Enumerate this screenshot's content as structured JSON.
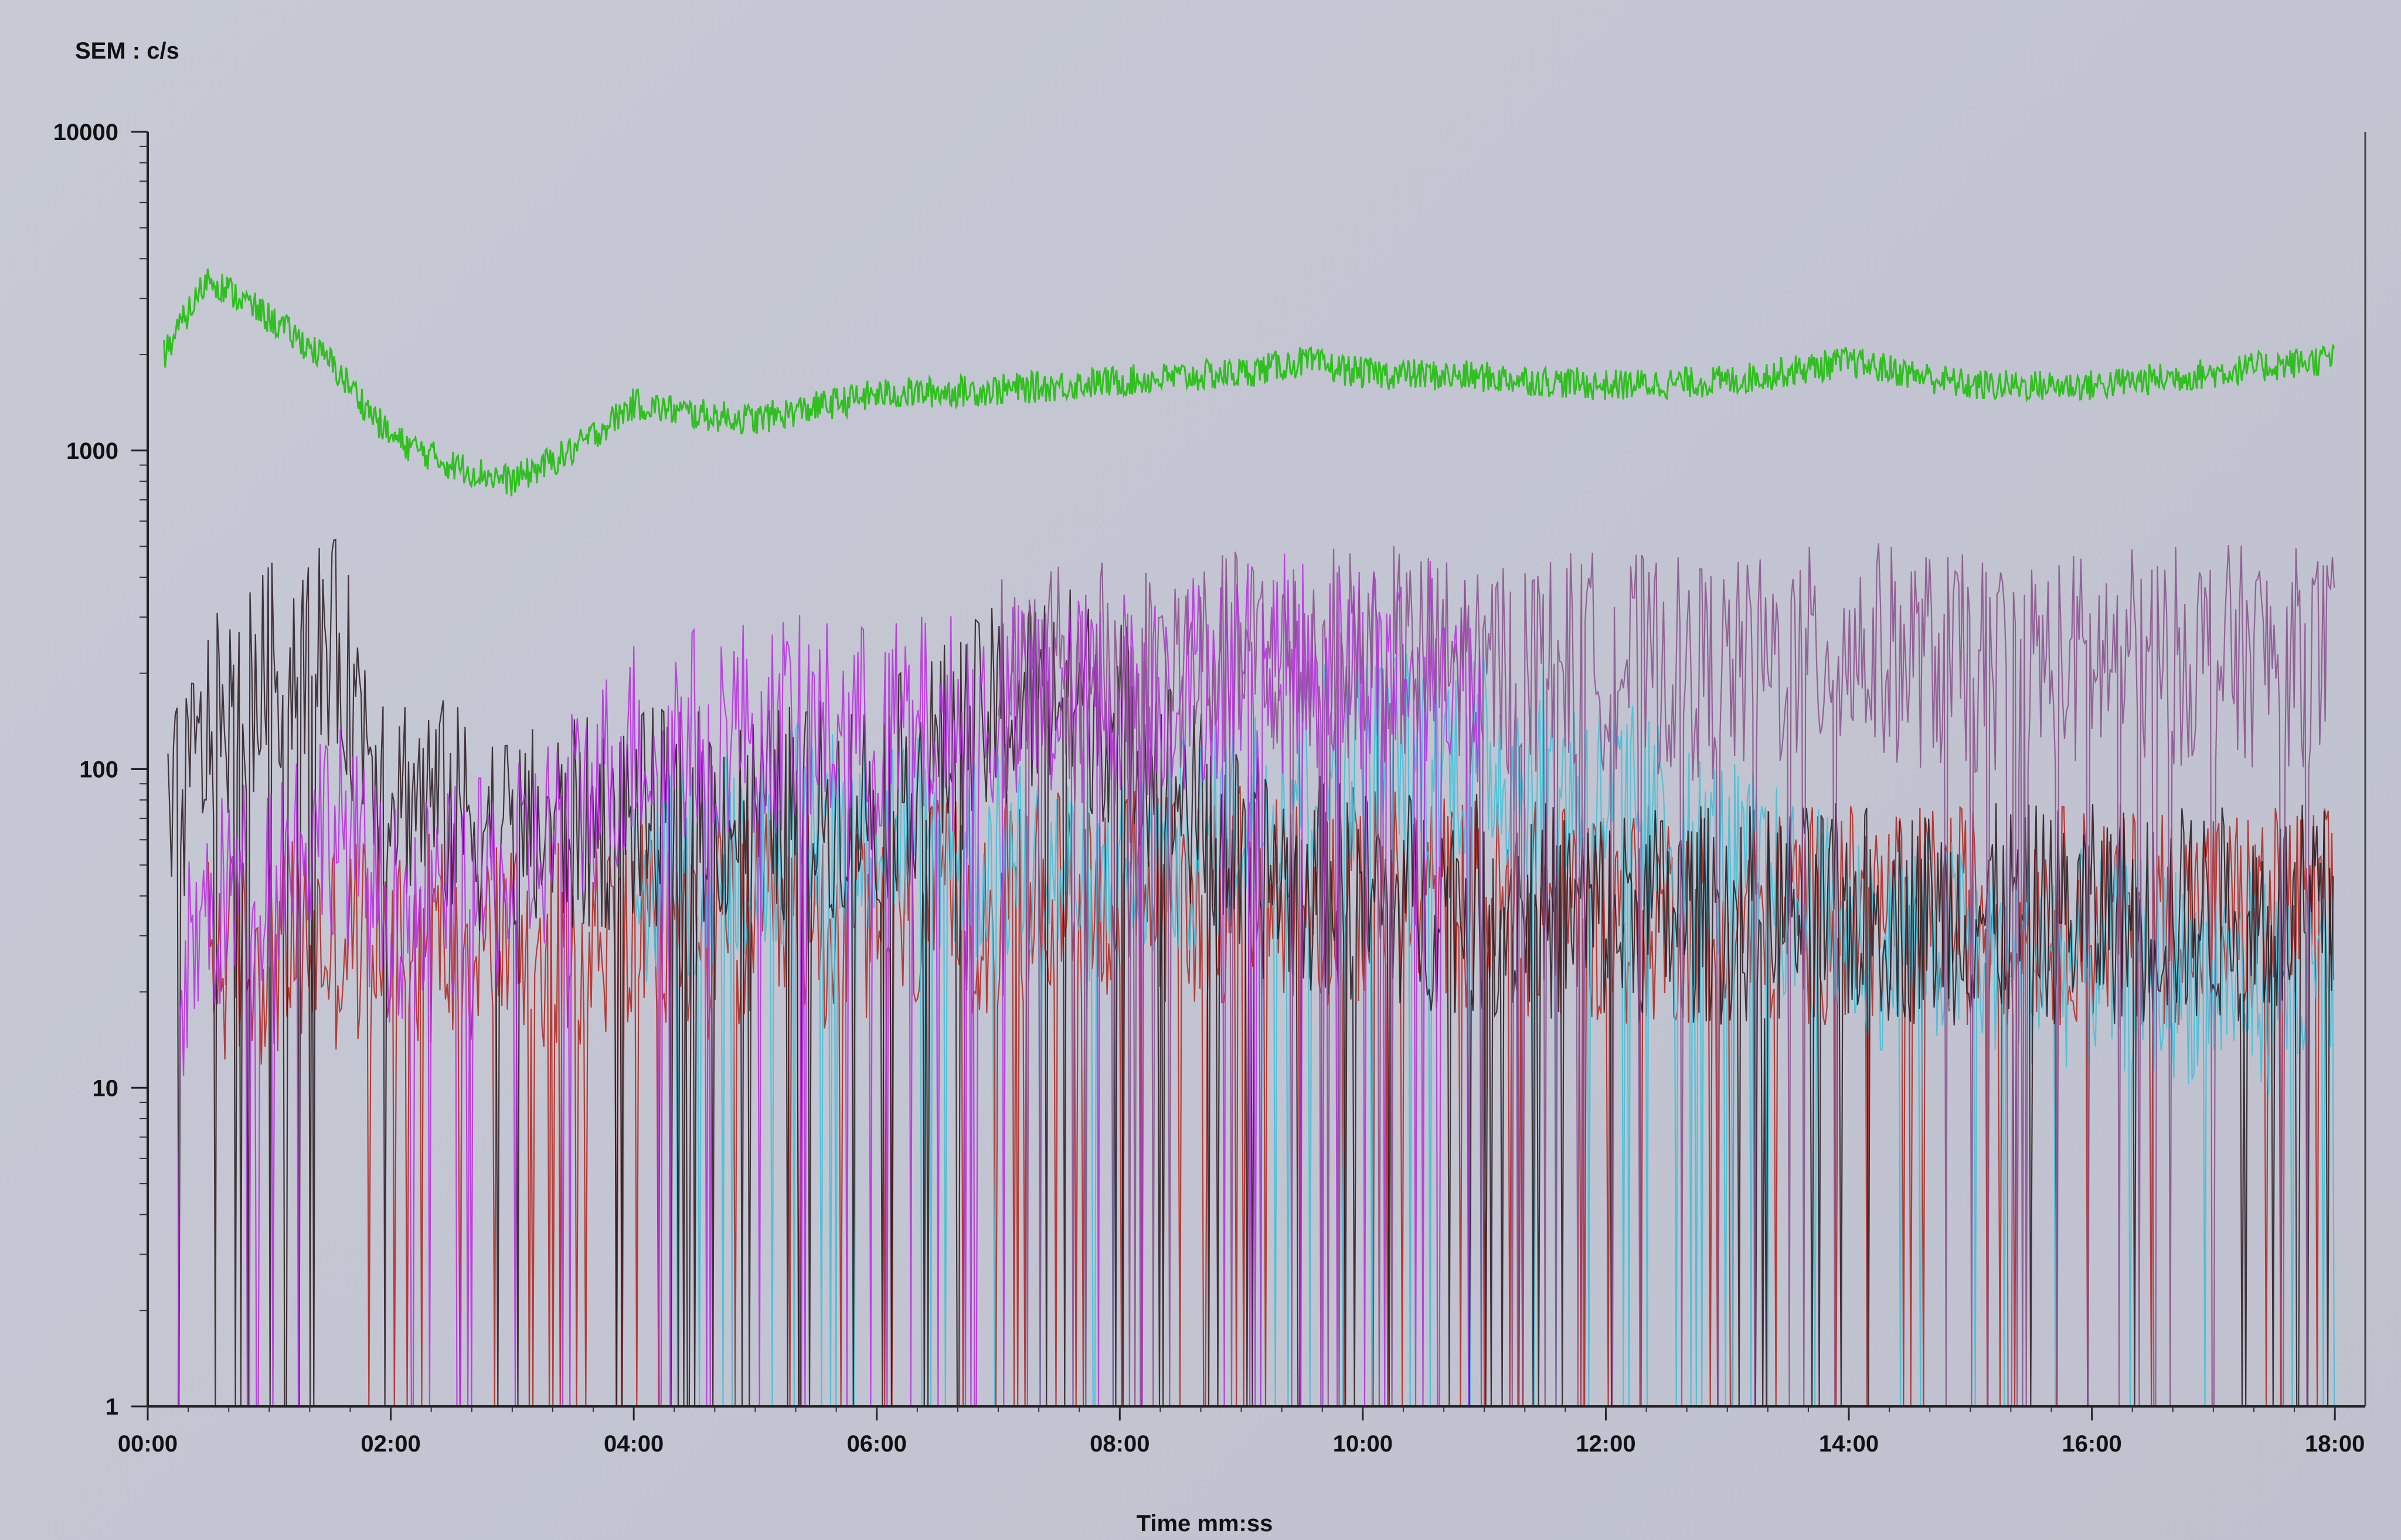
{
  "chart_data": {
    "type": "line",
    "title": "",
    "ylabel": "SEM : c/s",
    "xlabel": "Time mm:ss",
    "y_scale": "log",
    "ylim": [
      1,
      10000
    ],
    "xlim": [
      "00:00",
      "18:15"
    ],
    "y_ticks": [
      "1",
      "10",
      "100",
      "1000",
      "10000"
    ],
    "x_ticks": [
      "00:00",
      "02:00",
      "04:00",
      "06:00",
      "08:00",
      "10:00",
      "12:00",
      "14:00",
      "16:00",
      "18:00"
    ],
    "grid": false,
    "legend": "none",
    "series": [
      {
        "color": "#2fbf1f",
        "x": [
          "00:08",
          "00:30",
          "01:00",
          "01:30",
          "02:00",
          "02:30",
          "03:00",
          "03:30",
          "04:00",
          "04:30",
          "05:00",
          "06:00",
          "07:00",
          "08:00",
          "09:00",
          "09:30",
          "10:00",
          "11:00",
          "12:00",
          "13:00",
          "14:00",
          "15:00",
          "16:00",
          "17:00",
          "18:00"
        ],
        "y": [
          2000,
          3500,
          2600,
          1900,
          1100,
          900,
          800,
          1000,
          1400,
          1300,
          1250,
          1500,
          1550,
          1650,
          1750,
          1900,
          1750,
          1700,
          1600,
          1650,
          1900,
          1600,
          1600,
          1750,
          1950
        ]
      },
      {
        "color": "#8a4f8c",
        "x": [
          "07:00",
          "08:00",
          "09:00",
          "10:00",
          "11:00",
          "12:00",
          "13:00",
          "14:00",
          "15:00",
          "16:00",
          "17:00",
          "18:00"
        ],
        "y": [
          180,
          210,
          220,
          230,
          210,
          220,
          200,
          240,
          210,
          220,
          230,
          220
        ]
      },
      {
        "color": "#b92ce0",
        "x": [
          "00:15",
          "00:30",
          "01:00",
          "01:30",
          "02:00",
          "03:00",
          "04:00",
          "05:00",
          "06:00",
          "07:00",
          "08:00",
          "09:00",
          "10:00",
          "11:00"
        ],
        "y": [
          20,
          35,
          50,
          70,
          35,
          45,
          120,
          140,
          130,
          150,
          170,
          210,
          220,
          200
        ]
      },
      {
        "color": "#2a1a1e",
        "x": [
          "00:10",
          "00:30",
          "01:00",
          "01:30",
          "02:00",
          "03:00",
          "04:00",
          "05:00",
          "06:00",
          "07:00",
          "07:30",
          "08:00",
          "09:00",
          "10:00",
          "12:00",
          "14:00",
          "16:00",
          "18:00"
        ],
        "y": [
          60,
          130,
          200,
          260,
          90,
          60,
          70,
          70,
          80,
          150,
          180,
          140,
          50,
          40,
          35,
          35,
          35,
          35
        ]
      },
      {
        "color": "#3fc0d8",
        "x": [
          "04:00",
          "05:00",
          "06:00",
          "07:00",
          "08:00",
          "09:00",
          "09:30",
          "10:00",
          "11:00",
          "12:00",
          "13:00",
          "14:00",
          "16:00",
          "18:00"
        ],
        "y": [
          40,
          60,
          70,
          50,
          45,
          70,
          100,
          110,
          110,
          80,
          50,
          30,
          25,
          20
        ]
      },
      {
        "color": "#b3231c",
        "x": [
          "00:30",
          "02:00",
          "04:00",
          "06:00",
          "08:00",
          "10:00",
          "12:00",
          "14:00",
          "16:00",
          "18:00"
        ],
        "y": [
          25,
          30,
          30,
          35,
          40,
          40,
          35,
          35,
          35,
          35
        ]
      }
    ]
  }
}
